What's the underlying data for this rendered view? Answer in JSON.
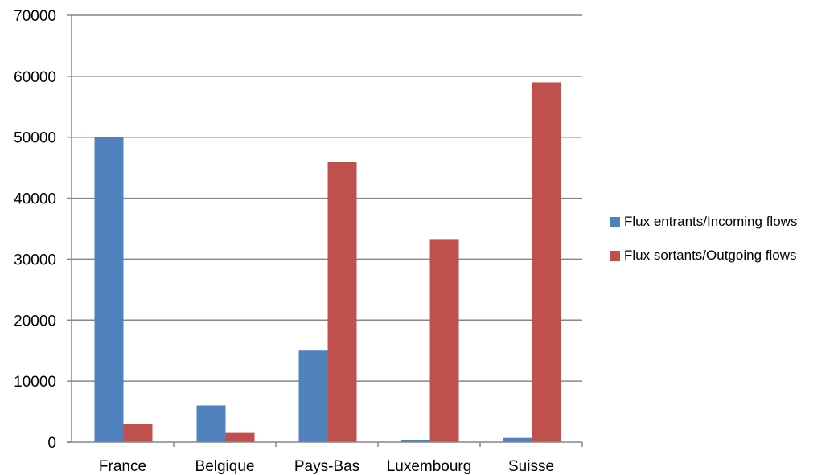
{
  "chart_data": {
    "type": "bar",
    "title": "",
    "xlabel": "",
    "ylabel": "",
    "categories": [
      "France",
      "Belgique",
      "Pays-Bas",
      "Luxembourg",
      "Suisse"
    ],
    "series": [
      {
        "name": "Flux entrants/Incoming flows",
        "color": "#4f81bd",
        "values": [
          50000,
          6000,
          15000,
          300,
          700
        ]
      },
      {
        "name": "Flux sortants/Outgoing flows",
        "color": "#c0504d",
        "values": [
          3000,
          1500,
          46000,
          33300,
          59000
        ]
      }
    ],
    "ylim": [
      0,
      70000
    ],
    "yticks": [
      0,
      10000,
      20000,
      30000,
      40000,
      50000,
      60000,
      70000
    ],
    "grid": true,
    "legend_position": "right"
  }
}
